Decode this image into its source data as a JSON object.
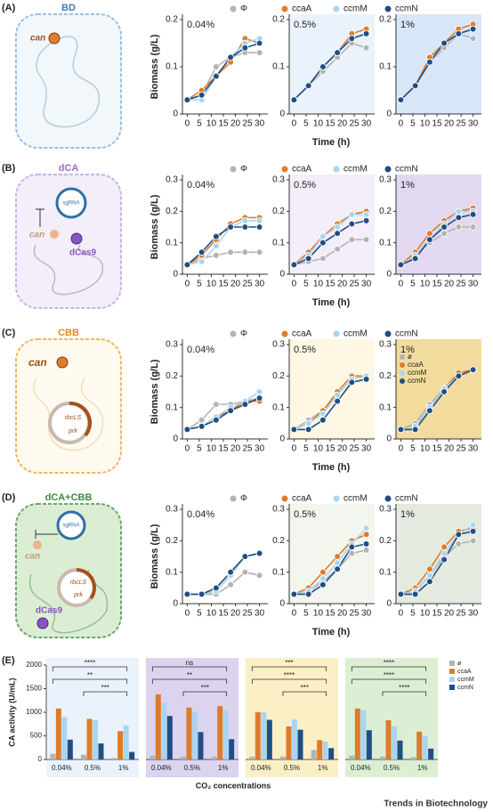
{
  "panels": [
    {
      "label": "(A)",
      "title": "BD",
      "texts": [
        "can"
      ]
    },
    {
      "label": "(B)",
      "title": "dCA",
      "texts": [
        "sgRNA",
        "can",
        "dCas9"
      ]
    },
    {
      "label": "(C)",
      "title": "CBB",
      "texts": [
        "can",
        "rbcLS",
        "prk"
      ]
    },
    {
      "label": "(D)",
      "title": "dCA+CBB",
      "texts": [
        "sgRNA",
        "can",
        "rbcLS",
        "prk",
        "dCas9"
      ]
    },
    {
      "label": "(E)"
    }
  ],
  "chart_data": [
    {
      "type": "line",
      "ylabel": "Biomass (g/L)",
      "xlabel": "Time (h)",
      "series": [
        {
          "name": "Φ",
          "color": "#b3b3b3"
        },
        {
          "name": "ccaA",
          "color": "#e07b2a"
        },
        {
          "name": "ccmM",
          "color": "#a9d5f0"
        },
        {
          "name": "ccmN",
          "color": "#1f4e85"
        }
      ],
      "x": [
        0,
        6,
        12,
        18,
        24,
        30
      ],
      "xlim": [
        -2,
        32
      ],
      "xticks": [
        0,
        5,
        10,
        15,
        20,
        25,
        30
      ],
      "ylim": [
        0,
        0.2
      ],
      "yticks": [
        0,
        0.1,
        0.2
      ],
      "subplots": [
        {
          "annotation": "0.04%",
          "background": "#ffffff",
          "values": [
            [
              0.03,
              0.04,
              0.1,
              0.12,
              0.13,
              0.13
            ],
            [
              0.03,
              0.05,
              0.08,
              0.11,
              0.16,
              0.15
            ],
            [
              0.03,
              0.03,
              0.08,
              0.12,
              0.15,
              0.16
            ],
            [
              0.03,
              0.04,
              0.08,
              0.12,
              0.14,
              0.15
            ]
          ]
        },
        {
          "annotation": "0.5%",
          "background": "#eaf3fc",
          "values": [
            [
              0.03,
              0.06,
              0.09,
              0.12,
              0.15,
              0.14
            ],
            [
              0.03,
              0.06,
              0.1,
              0.13,
              0.17,
              0.18
            ],
            [
              0.03,
              0.06,
              0.1,
              0.13,
              0.16,
              0.17
            ],
            [
              0.03,
              0.06,
              0.1,
              0.13,
              0.16,
              0.17
            ]
          ]
        },
        {
          "annotation": "1%",
          "background": "#d8e7f7",
          "values": [
            [
              0.03,
              0.06,
              0.11,
              0.14,
              0.17,
              0.16
            ],
            [
              0.03,
              0.06,
              0.12,
              0.15,
              0.18,
              0.19
            ],
            [
              0.03,
              0.06,
              0.11,
              0.15,
              0.17,
              0.18
            ],
            [
              0.03,
              0.06,
              0.11,
              0.15,
              0.17,
              0.18
            ]
          ]
        }
      ]
    },
    {
      "type": "line",
      "ylabel": "Biomass (g/L)",
      "xlabel": "Time (h)",
      "series": [
        {
          "name": "Φ",
          "color": "#b3b3b3"
        },
        {
          "name": "ccaA",
          "color": "#e07b2a"
        },
        {
          "name": "ccmM",
          "color": "#a9d5f0"
        },
        {
          "name": "ccmN",
          "color": "#1f4e85"
        }
      ],
      "x": [
        0,
        6,
        12,
        18,
        24,
        30
      ],
      "xlim": [
        -2,
        32
      ],
      "xticks": [
        0,
        5,
        10,
        15,
        20,
        25,
        30
      ],
      "ylim": [
        0,
        0.3
      ],
      "yticks": [
        0,
        0.1,
        0.2,
        0.3
      ],
      "subplots": [
        {
          "annotation": "0.04%",
          "background": "#ffffff",
          "values": [
            [
              0.03,
              0.05,
              0.06,
              0.07,
              0.07,
              0.07
            ],
            [
              0.03,
              0.06,
              0.11,
              0.16,
              0.18,
              0.18
            ],
            [
              0.03,
              0.04,
              0.09,
              0.15,
              0.17,
              0.17
            ],
            [
              0.03,
              0.07,
              0.12,
              0.15,
              0.15,
              0.15
            ]
          ]
        },
        {
          "annotation": "0.5%",
          "background": "#f3eefa",
          "values": [
            [
              0.03,
              0.04,
              0.05,
              0.08,
              0.11,
              0.11
            ],
            [
              0.03,
              0.07,
              0.12,
              0.16,
              0.19,
              0.2
            ],
            [
              0.03,
              0.06,
              0.12,
              0.15,
              0.19,
              0.19
            ],
            [
              0.03,
              0.05,
              0.1,
              0.13,
              0.16,
              0.17
            ]
          ]
        },
        {
          "annotation": "1%",
          "background": "#e2d9f1",
          "values": [
            [
              0.03,
              0.06,
              0.1,
              0.13,
              0.15,
              0.15
            ],
            [
              0.03,
              0.07,
              0.13,
              0.17,
              0.2,
              0.21
            ],
            [
              0.03,
              0.06,
              0.11,
              0.16,
              0.2,
              0.2
            ],
            [
              0.03,
              0.05,
              0.11,
              0.15,
              0.18,
              0.19
            ]
          ]
        }
      ]
    },
    {
      "type": "line",
      "ylabel": "Biomass (g/L)",
      "xlabel": "Time (h)",
      "series": [
        {
          "name": "Φ",
          "color": "#b3b3b3"
        },
        {
          "name": "ccaA",
          "color": "#e07b2a"
        },
        {
          "name": "ccmM",
          "color": "#a9d5f0"
        },
        {
          "name": "ccmN",
          "color": "#1f4e85"
        }
      ],
      "x": [
        0,
        6,
        12,
        18,
        24,
        30
      ],
      "xlim": [
        -2,
        32
      ],
      "xticks": [
        0,
        5,
        10,
        15,
        20,
        25,
        30
      ],
      "ylim": [
        0,
        0.3
      ],
      "yticks": [
        0,
        0.1,
        0.2,
        0.3
      ],
      "subplots": [
        {
          "annotation": "0.04%",
          "background": "#ffffff",
          "values": [
            [
              0.03,
              0.06,
              0.11,
              0.11,
              0.12,
              0.13
            ],
            [
              0.03,
              0.04,
              0.07,
              0.09,
              0.12,
              0.12
            ],
            [
              0.03,
              0.04,
              0.07,
              0.1,
              0.12,
              0.15
            ],
            [
              0.03,
              0.04,
              0.06,
              0.09,
              0.11,
              0.13
            ]
          ]
        },
        {
          "annotation": "0.5%",
          "background": "#fdf7e4",
          "values": [
            [
              0.03,
              0.06,
              0.09,
              0.14,
              0.19,
              0.2
            ],
            [
              0.03,
              0.05,
              0.09,
              0.15,
              0.2,
              0.2
            ],
            [
              0.03,
              0.05,
              0.08,
              0.14,
              0.19,
              0.2
            ],
            [
              0.03,
              0.03,
              0.06,
              0.12,
              0.18,
              0.19
            ]
          ]
        },
        {
          "annotation": "1%",
          "background": "#f1dc9e",
          "legend": [
            "ø",
            "ccaA",
            "ccmM",
            "ccmN"
          ],
          "values": [
            [
              0.03,
              0.05,
              0.11,
              0.16,
              0.2,
              0.22
            ],
            [
              0.03,
              0.04,
              0.1,
              0.16,
              0.21,
              0.22
            ],
            [
              0.03,
              0.04,
              0.1,
              0.16,
              0.2,
              0.22
            ],
            [
              0.03,
              0.03,
              0.09,
              0.15,
              0.2,
              0.22
            ]
          ]
        }
      ]
    },
    {
      "type": "line",
      "ylabel": "Biomass (g/L)",
      "xlabel": "Time (h)",
      "series": [
        {
          "name": "Φ",
          "color": "#b3b3b3"
        },
        {
          "name": "ccaA",
          "color": "#e07b2a"
        },
        {
          "name": "ccmM",
          "color": "#a9d5f0"
        },
        {
          "name": "ccmN",
          "color": "#1f4e85"
        }
      ],
      "x": [
        0,
        6,
        12,
        18,
        24,
        30
      ],
      "xlim": [
        -2,
        32
      ],
      "xticks": [
        0,
        5,
        10,
        15,
        20,
        25,
        30
      ],
      "ylim": [
        0,
        0.3
      ],
      "yticks": [
        0,
        0.1,
        0.2,
        0.3
      ],
      "subplots": [
        {
          "annotation": "0.04%",
          "background": "#ffffff",
          "values": [
            [
              0.03,
              0.03,
              0.03,
              0.06,
              0.1,
              0.09
            ],
            [
              0.03,
              0.03,
              0.04,
              0.09,
              0.15,
              0.16
            ],
            [
              0.03,
              0.03,
              0.04,
              0.09,
              0.15,
              0.16
            ],
            [
              0.03,
              0.03,
              0.05,
              0.1,
              0.15,
              0.16
            ]
          ]
        },
        {
          "annotation": "0.5%",
          "background": "#f3f6ee",
          "values": [
            [
              0.03,
              0.04,
              0.07,
              0.11,
              0.16,
              0.17
            ],
            [
              0.03,
              0.05,
              0.1,
              0.15,
              0.2,
              0.22
            ],
            [
              0.03,
              0.04,
              0.08,
              0.13,
              0.19,
              0.24
            ],
            [
              0.03,
              0.03,
              0.06,
              0.11,
              0.18,
              0.19
            ]
          ]
        },
        {
          "annotation": "1%",
          "background": "#e5eae0",
          "values": [
            [
              0.03,
              0.04,
              0.09,
              0.15,
              0.19,
              0.2
            ],
            [
              0.03,
              0.05,
              0.11,
              0.18,
              0.23,
              0.24
            ],
            [
              0.03,
              0.04,
              0.09,
              0.16,
              0.22,
              0.25
            ],
            [
              0.03,
              0.03,
              0.07,
              0.14,
              0.22,
              0.23
            ]
          ]
        }
      ]
    },
    {
      "type": "bar",
      "ylabel": "CA activity (U/mL)",
      "xlabel": "CO₂ concentrations",
      "series": [
        {
          "name": "ø",
          "color": "#b3b3b3"
        },
        {
          "name": "ccaA",
          "color": "#e07b2a"
        },
        {
          "name": "ccmM",
          "color": "#a9d5f0"
        },
        {
          "name": "ccmN",
          "color": "#1f4e85"
        }
      ],
      "categories": [
        "0.04%",
        "0.5%",
        "1%"
      ],
      "ylim": [
        0,
        2000
      ],
      "yticks": [
        0,
        500,
        1000,
        1500,
        2000
      ],
      "subplots": [
        {
          "background": "#eaf3fc",
          "annotations": [
            "****",
            "**",
            "***"
          ],
          "values": [
            [
              120,
              100,
              30
            ],
            [
              1080,
              860,
              600
            ],
            [
              900,
              830,
              720
            ],
            [
              420,
              340,
              160
            ]
          ]
        },
        {
          "background": "#dcd3ef",
          "annotations": [
            "ns",
            "**",
            "***"
          ],
          "values": [
            [
              80,
              60,
              60
            ],
            [
              1380,
              1100,
              1130
            ],
            [
              1200,
              1000,
              1050
            ],
            [
              920,
              580,
              430
            ]
          ]
        },
        {
          "background": "#fbefc6",
          "annotations": [
            "***",
            "****",
            "***"
          ],
          "values": [
            [
              60,
              60,
              200
            ],
            [
              1000,
              700,
              410
            ],
            [
              1000,
              850,
              380
            ],
            [
              840,
              630,
              240
            ]
          ]
        },
        {
          "background": "#dcefd4",
          "annotations": [
            "****",
            "****",
            "****"
          ],
          "values": [
            [
              80,
              60,
              50
            ],
            [
              1080,
              830,
              590
            ],
            [
              1050,
              700,
              500
            ],
            [
              620,
              400,
              230
            ]
          ]
        }
      ]
    }
  ],
  "credit": "Trends in Biotechnology"
}
